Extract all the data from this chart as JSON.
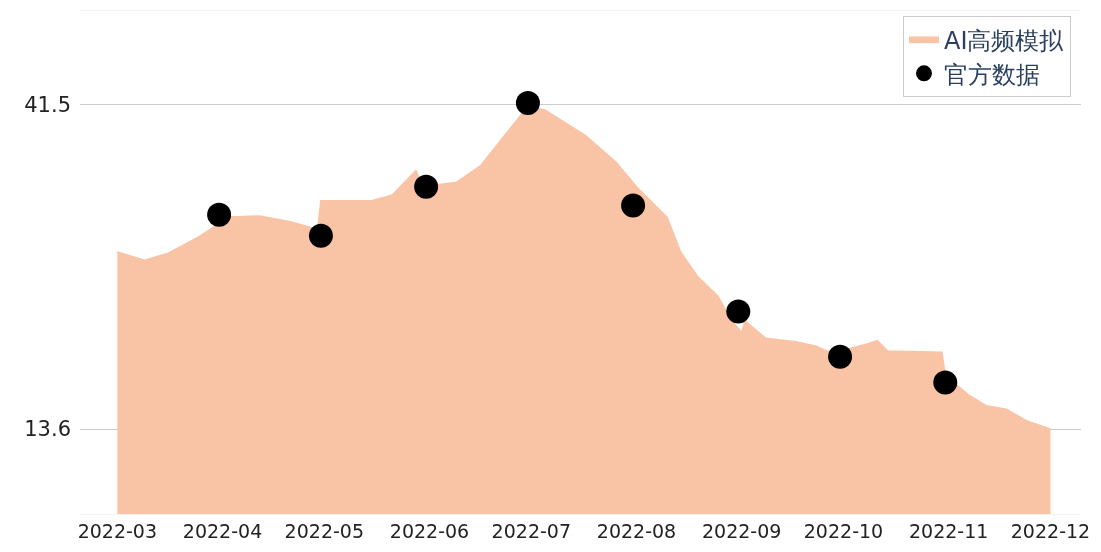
{
  "chart_data": {
    "type": "area",
    "series": [
      {
        "name": "AI高频模拟",
        "color": "#f9c3a6",
        "x": [
          "2022-03-01",
          "2022-03-09",
          "2022-03-16",
          "2022-03-25",
          "2022-04-03",
          "2022-04-12",
          "2022-04-21",
          "2022-04-27",
          "2022-04-29",
          "2022-04-30",
          "2022-05-15",
          "2022-05-21",
          "2022-05-28",
          "2022-05-30",
          "2022-06-09",
          "2022-06-16",
          "2022-06-25",
          "2022-06-30",
          "2022-07-05",
          "2022-07-17",
          "2022-07-26",
          "2022-08-01",
          "2022-08-10",
          "2022-08-14",
          "2022-08-19",
          "2022-08-25",
          "2022-08-29",
          "2022-09-01",
          "2022-09-02",
          "2022-09-08",
          "2022-09-17",
          "2022-09-23",
          "2022-09-26",
          "2022-09-30",
          "2022-10-08",
          "2022-10-11",
          "2022-10-14",
          "2022-10-30",
          "2022-10-31",
          "2022-11-07",
          "2022-11-12",
          "2022-11-18",
          "2022-11-24",
          "2022-12-01"
        ],
        "values": [
          28.8,
          28.1,
          28.7,
          30.1,
          31.8,
          31.9,
          31.4,
          30.9,
          30.7,
          33.2,
          33.2,
          33.7,
          35.8,
          34.4,
          34.8,
          36.2,
          39.5,
          41.3,
          41.0,
          38.8,
          36.5,
          34.4,
          31.8,
          28.8,
          26.7,
          25.0,
          22.9,
          21.9,
          22.9,
          21.4,
          21.1,
          20.7,
          20.3,
          20.3,
          20.9,
          21.2,
          20.3,
          20.2,
          18.2,
          16.5,
          15.6,
          15.3,
          14.3,
          13.6
        ]
      },
      {
        "name": "官方数据",
        "type": "scatter",
        "color": "#000000",
        "marker": "circle",
        "x": [
          "2022-03-31",
          "2022-04-30",
          "2022-05-31",
          "2022-06-30",
          "2022-07-31",
          "2022-08-31",
          "2022-09-30",
          "2022-10-31"
        ],
        "values": [
          32.0,
          30.2,
          34.4,
          41.6,
          32.8,
          23.7,
          19.8,
          17.6
        ]
      }
    ],
    "xlim": [
      "2022-02-18",
      "2022-12-10"
    ],
    "xticks": [
      "2022-03",
      "2022-04",
      "2022-05",
      "2022-06",
      "2022-07",
      "2022-08",
      "2022-09",
      "2022-10",
      "2022-11",
      "2022-12"
    ],
    "ylim": [
      6.3,
      49.5
    ],
    "yticks": [
      13.6,
      41.5
    ],
    "grid": "y",
    "legend": "top right"
  }
}
